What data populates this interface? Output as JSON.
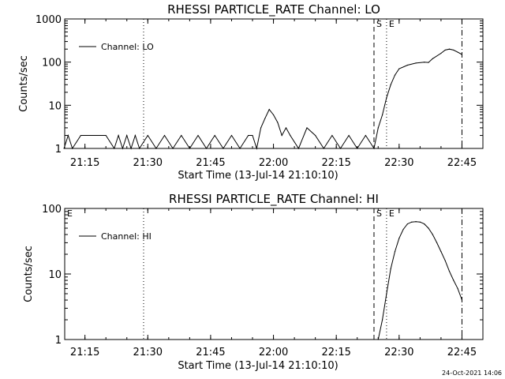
{
  "colors": {
    "background": "#ffffff",
    "ink": "#000000"
  },
  "footer": {
    "timestamp": "24-Oct-2021 14:06"
  },
  "chart_data": [
    {
      "type": "line",
      "title": "RHESSI PARTICLE_RATE Channel: LO",
      "xlabel": "Start Time (13-Jul-14 21:10:10)",
      "ylabel": "Counts/sec",
      "y_scale": "log",
      "ylim": [
        1,
        1000
      ],
      "xlim": [
        "21:10:10",
        "22:50:00"
      ],
      "x_ticks": [
        "21:15",
        "21:30",
        "21:45",
        "22:00",
        "22:15",
        "22:30",
        "22:45"
      ],
      "y_ticks": [
        "1",
        "10",
        "100",
        "1000"
      ],
      "legend": {
        "placement": "top-left",
        "entries": [
          "Channel: LO"
        ]
      },
      "markers": [
        {
          "label": "S",
          "x": "22:24",
          "style": "dashed"
        },
        {
          "label": "E",
          "x": "22:27",
          "style": "dotted"
        },
        {
          "label": "",
          "x": "21:29",
          "style": "dotted"
        },
        {
          "label": "",
          "x": "22:45",
          "style": "dash-dot"
        }
      ],
      "series": [
        {
          "name": "Channel: LO",
          "x": [
            "21:10",
            "21:11",
            "21:12",
            "21:14",
            "21:20",
            "21:22",
            "21:23",
            "21:24",
            "21:25",
            "21:26",
            "21:27",
            "21:28",
            "21:30",
            "21:32",
            "21:34",
            "21:36",
            "21:38",
            "21:40",
            "21:42",
            "21:44",
            "21:46",
            "21:48",
            "21:50",
            "21:52",
            "21:54",
            "21:55",
            "21:56",
            "21:57",
            "21:58",
            "21:59",
            "22:00",
            "22:01",
            "22:02",
            "22:03",
            "22:04",
            "22:06",
            "22:08",
            "22:10",
            "22:12",
            "22:14",
            "22:16",
            "22:18",
            "22:20",
            "22:22",
            "22:24",
            "22:25",
            "22:26",
            "22:27",
            "22:28",
            "22:29",
            "22:30",
            "22:32",
            "22:34",
            "22:36",
            "22:37",
            "22:38",
            "22:40",
            "22:41",
            "22:42",
            "22:43",
            "22:44",
            "22:45"
          ],
          "y": [
            1,
            2,
            1,
            2,
            2,
            1,
            2,
            1,
            2,
            1,
            2,
            1,
            2,
            1,
            2,
            1,
            2,
            1,
            2,
            1,
            2,
            1,
            2,
            1,
            2,
            2,
            1,
            3,
            5,
            8,
            6,
            4,
            2,
            3,
            2,
            1,
            3,
            2,
            1,
            2,
            1,
            2,
            1,
            2,
            1,
            3,
            6,
            15,
            30,
            50,
            70,
            85,
            95,
            100,
            98,
            120,
            160,
            190,
            200,
            190,
            170,
            150
          ]
        }
      ]
    },
    {
      "type": "line",
      "title": "RHESSI PARTICLE_RATE Channel: HI",
      "xlabel": "Start Time (13-Jul-14 21:10:10)",
      "ylabel": "Counts/sec",
      "y_scale": "log",
      "ylim": [
        1,
        100
      ],
      "xlim": [
        "21:10:10",
        "22:50:00"
      ],
      "x_ticks": [
        "21:15",
        "21:30",
        "21:45",
        "22:00",
        "22:15",
        "22:30",
        "22:45"
      ],
      "y_ticks": [
        "1",
        "10",
        "100"
      ],
      "legend": {
        "placement": "top-left",
        "entries": [
          "Channel: HI"
        ]
      },
      "markers": [
        {
          "label": "E",
          "x": "21:10",
          "style": "solid"
        },
        {
          "label": "S",
          "x": "22:24",
          "style": "dashed"
        },
        {
          "label": "E",
          "x": "22:27",
          "style": "dotted"
        },
        {
          "label": "",
          "x": "21:29",
          "style": "dotted"
        },
        {
          "label": "",
          "x": "22:45",
          "style": "dash-dot"
        }
      ],
      "series": [
        {
          "name": "Channel: HI",
          "x": [
            "22:25",
            "22:26",
            "22:27",
            "22:28",
            "22:29",
            "22:30",
            "22:31",
            "22:32",
            "22:33",
            "22:34",
            "22:35",
            "22:36",
            "22:37",
            "22:38",
            "22:39",
            "22:40",
            "22:41",
            "22:42",
            "22:43",
            "22:44",
            "22:45"
          ],
          "y": [
            1,
            2,
            5,
            12,
            22,
            35,
            48,
            58,
            62,
            63,
            62,
            58,
            50,
            40,
            30,
            22,
            16,
            11,
            8,
            6,
            4
          ]
        }
      ]
    }
  ]
}
